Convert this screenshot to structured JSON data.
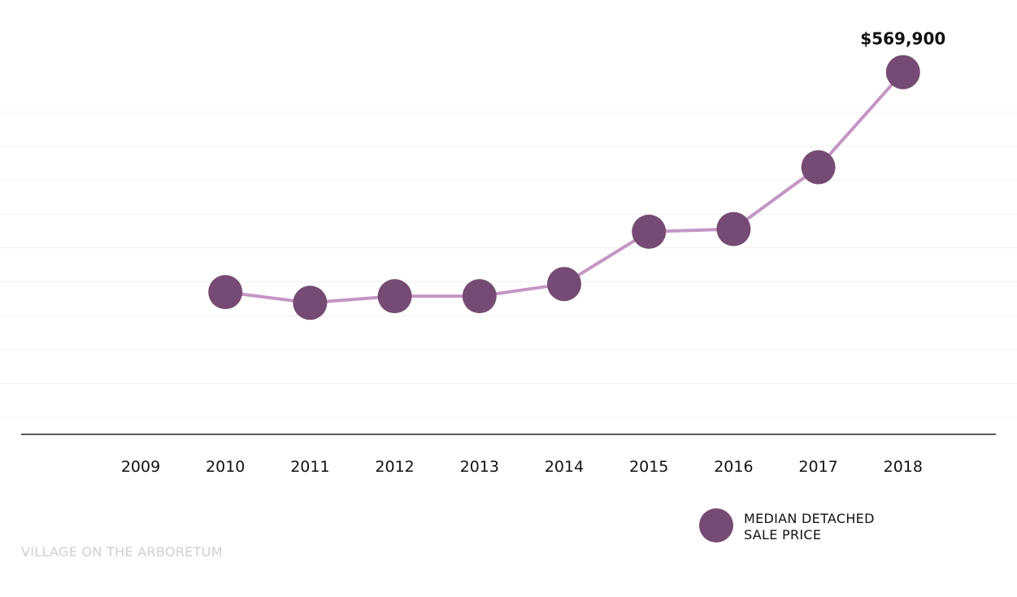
{
  "chart_data": {
    "type": "line",
    "x": [
      "2009",
      "2010",
      "2011",
      "2012",
      "2013",
      "2014",
      "2015",
      "2016",
      "2017",
      "2018"
    ],
    "series": [
      {
        "name": "MEDIAN DETACHED SALE PRICE",
        "values": [
          null,
          406000,
          398000,
          403000,
          403000,
          412000,
          451000,
          453000,
          499000,
          569900
        ]
      }
    ],
    "data_labels": [
      {
        "x": "2018",
        "text": "$569,900"
      }
    ],
    "ylim": [
      300000,
      540000
    ],
    "grid": true,
    "legend_position": "bottom-right",
    "colors": {
      "marker": "#764b73",
      "line": "#c496c4",
      "axis": "#222222",
      "grid": "#f1f1f1"
    }
  },
  "legend": {
    "line1": "MEDIAN DETACHED",
    "line2": "SALE PRICE"
  },
  "footer": {
    "text": "VILLAGE ON THE ARBORETUM"
  }
}
